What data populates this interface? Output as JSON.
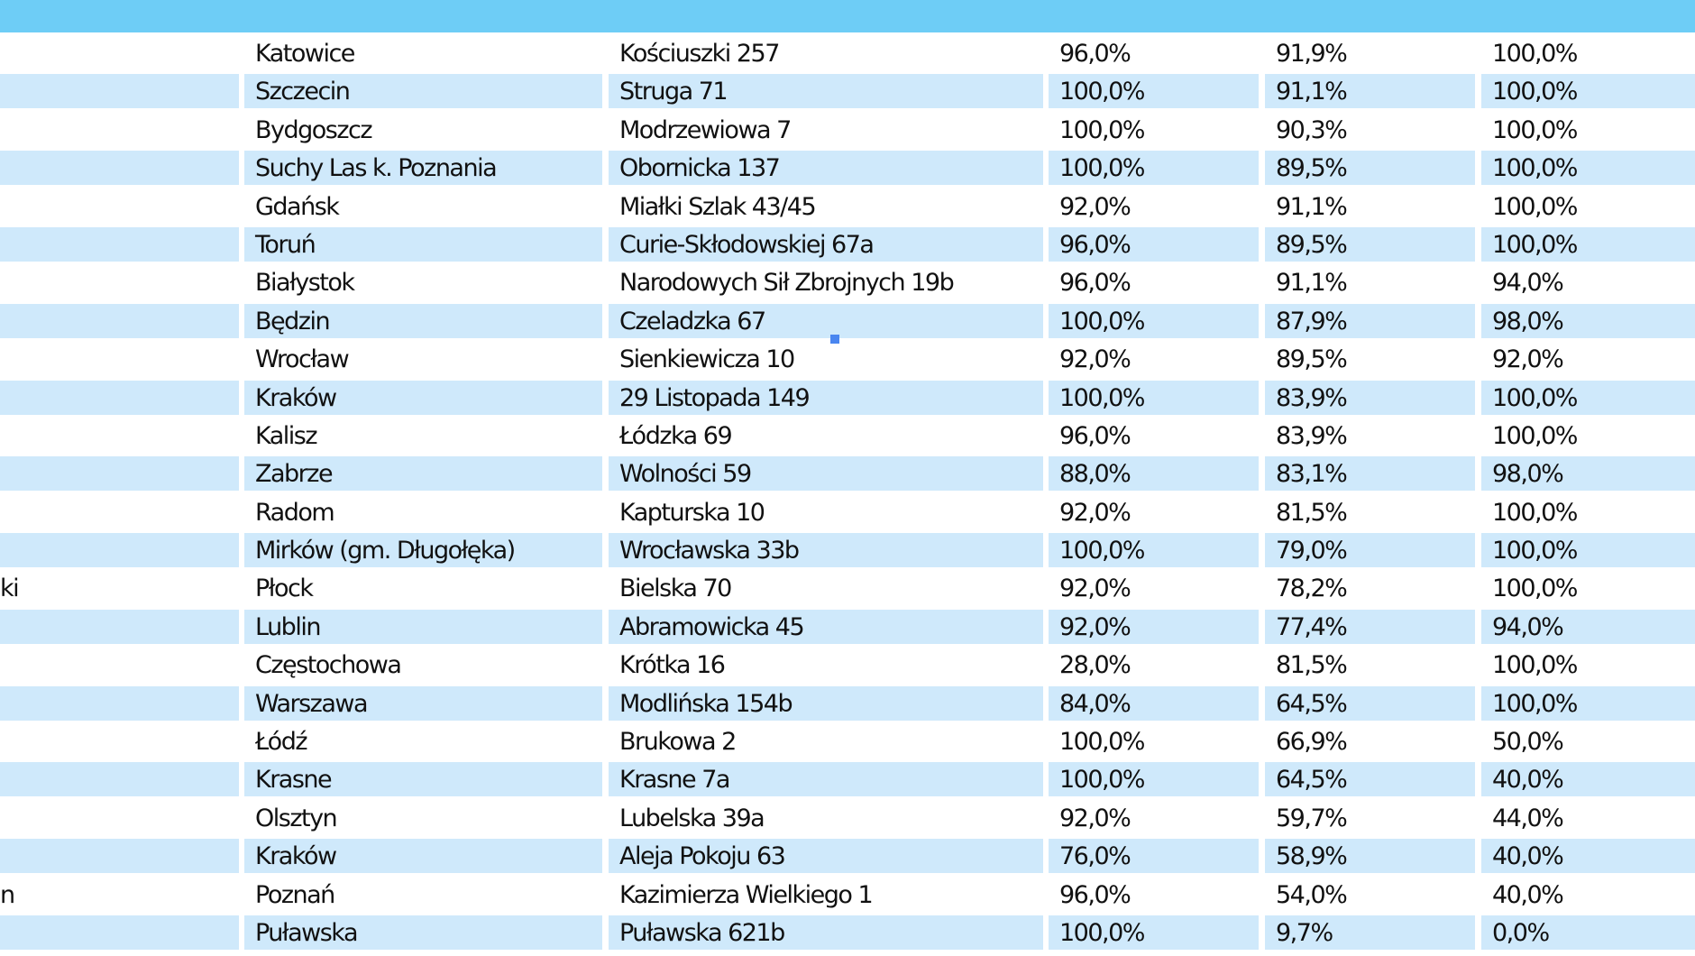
{
  "rows": [
    {
      "lead": "",
      "city": "Katowice",
      "street": "Kościuszki 257",
      "p1": "96,0%",
      "p2": "91,9%",
      "p3": "100,0%"
    },
    {
      "lead": "",
      "city": "Szczecin",
      "street": "Struga 71",
      "p1": "100,0%",
      "p2": "91,1%",
      "p3": "100,0%"
    },
    {
      "lead": "",
      "city": "Bydgoszcz",
      "street": "Modrzewiowa 7",
      "p1": "100,0%",
      "p2": "90,3%",
      "p3": "100,0%"
    },
    {
      "lead": "",
      "city": "Suchy Las k. Poznania",
      "street": "Obornicka 137",
      "p1": "100,0%",
      "p2": "89,5%",
      "p3": "100,0%"
    },
    {
      "lead": "",
      "city": "Gdańsk",
      "street": "Miałki Szlak 43/45",
      "p1": "92,0%",
      "p2": "91,1%",
      "p3": "100,0%"
    },
    {
      "lead": "",
      "city": "Toruń",
      "street": "Curie-Skłodowskiej 67a",
      "p1": "96,0%",
      "p2": "89,5%",
      "p3": "100,0%"
    },
    {
      "lead": "",
      "city": "Białystok",
      "street": "Narodowych Sił Zbrojnych 19b",
      "p1": "96,0%",
      "p2": "91,1%",
      "p3": "94,0%"
    },
    {
      "lead": "",
      "city": "Będzin",
      "street": "Czeladzka 67",
      "p1": "100,0%",
      "p2": "87,9%",
      "p3": "98,0%"
    },
    {
      "lead": "",
      "city": "Wrocław",
      "street": "Sienkiewicza 10",
      "p1": "92,0%",
      "p2": "89,5%",
      "p3": "92,0%"
    },
    {
      "lead": "",
      "city": "Kraków",
      "street": "29 Listopada 149",
      "p1": "100,0%",
      "p2": "83,9%",
      "p3": "100,0%"
    },
    {
      "lead": "",
      "city": "Kalisz",
      "street": "Łódzka 69",
      "p1": "96,0%",
      "p2": "83,9%",
      "p3": "100,0%"
    },
    {
      "lead": "",
      "city": "Zabrze",
      "street": "Wolności 59",
      "p1": "88,0%",
      "p2": "83,1%",
      "p3": "98,0%"
    },
    {
      "lead": "",
      "city": "Radom",
      "street": "Kapturska 10",
      "p1": "92,0%",
      "p2": "81,5%",
      "p3": "100,0%"
    },
    {
      "lead": "",
      "city": "Mirków (gm. Długołęka)",
      "street": "Wrocławska 33b",
      "p1": "100,0%",
      "p2": "79,0%",
      "p3": "100,0%"
    },
    {
      "lead": "ki",
      "city": "Płock",
      "street": "Bielska 70",
      "p1": "92,0%",
      "p2": "78,2%",
      "p3": "100,0%"
    },
    {
      "lead": "",
      "city": "Lublin",
      "street": "Abramowicka 45",
      "p1": "92,0%",
      "p2": "77,4%",
      "p3": "94,0%"
    },
    {
      "lead": "",
      "city": "Częstochowa",
      "street": "Krótka 16",
      "p1": "28,0%",
      "p2": "81,5%",
      "p3": "100,0%"
    },
    {
      "lead": "",
      "city": "Warszawa",
      "street": "Modlińska 154b",
      "p1": "84,0%",
      "p2": "64,5%",
      "p3": "100,0%"
    },
    {
      "lead": "",
      "city": "Łódź",
      "street": "Brukowa 2",
      "p1": "100,0%",
      "p2": "66,9%",
      "p3": "50,0%"
    },
    {
      "lead": "",
      "city": "Krasne",
      "street": "Krasne 7a",
      "p1": "100,0%",
      "p2": "64,5%",
      "p3": "40,0%"
    },
    {
      "lead": "",
      "city": "Olsztyn",
      "street": "Lubelska 39a",
      "p1": "92,0%",
      "p2": "59,7%",
      "p3": "44,0%"
    },
    {
      "lead": "",
      "city": "Kraków",
      "street": "Aleja Pokoju 63",
      "p1": "76,0%",
      "p2": "58,9%",
      "p3": "40,0%"
    },
    {
      "lead": "n",
      "city": "Poznań",
      "street": "Kazimierza Wielkiego 1",
      "p1": "96,0%",
      "p2": "54,0%",
      "p3": "40,0%"
    },
    {
      "lead": "",
      "city": "Puławska",
      "street": "Puławska 621b",
      "p1": "100,0%",
      "p2": "9,7%",
      "p3": "0,0%"
    }
  ]
}
